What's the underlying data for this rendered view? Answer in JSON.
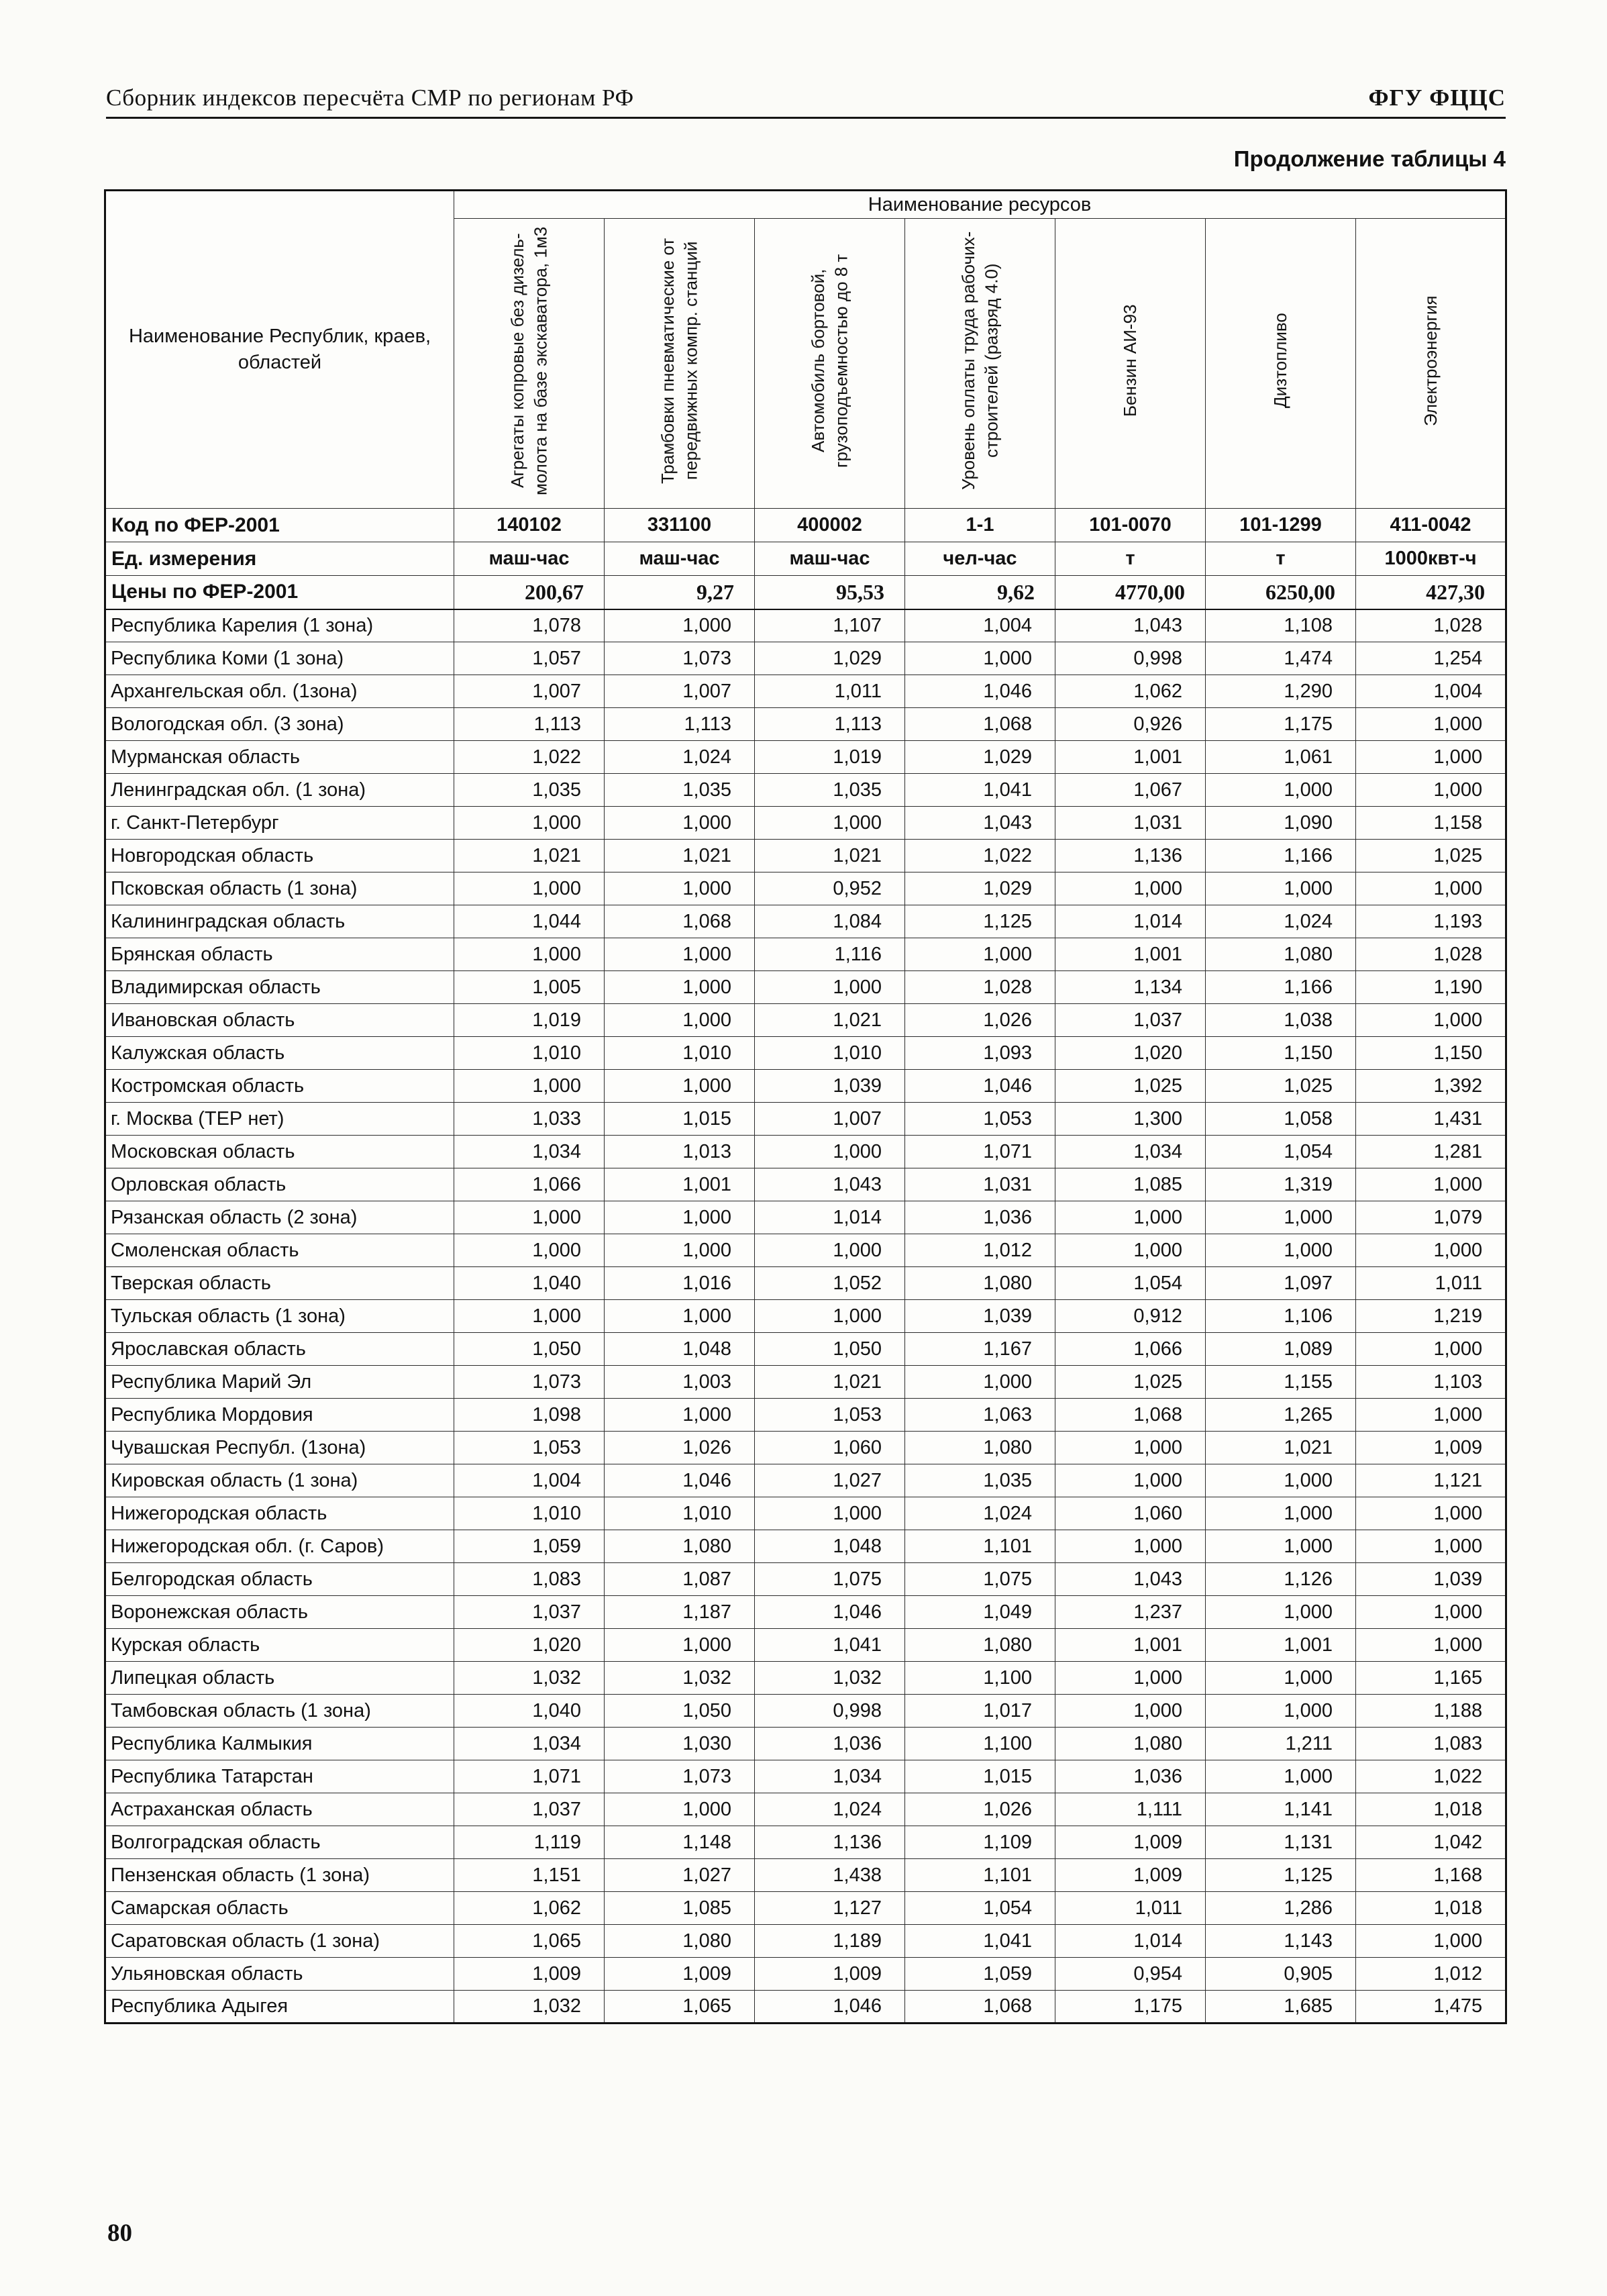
{
  "page": {
    "header_left": "Сборник индексов пересчёта СМР  по регионам РФ",
    "header_right": "ФГУ ФЦЦС",
    "table_caption": "Продолжение таблицы 4",
    "page_number": "80"
  },
  "table": {
    "corner_header": "Наименование Республик, краев, областей",
    "resources_header": "Наименование ресурсов",
    "columns": [
      "Агрегаты копровые без дизель-молота на базе экскаватора, 1м3",
      "Трамбовки пневматические от передвижных компр. станций",
      "Автомобиль бортовой, грузоподъемностью до 8 т",
      "Уровень оплаты труда рабочих-строителей (разряд 4.0)",
      "Бензин АИ-93",
      "Дизтопливо",
      "Электроэнергия"
    ],
    "meta_rows": [
      {
        "label": "Код по ФЕР-2001",
        "values": [
          "140102",
          "331100",
          "400002",
          "1-1",
          "101-0070",
          "101-1299",
          "411-0042"
        ]
      },
      {
        "label": "Ед. измерения",
        "values": [
          "маш-час",
          "маш-час",
          "маш-час",
          "чел-час",
          "т",
          "т",
          "1000квт-ч"
        ]
      },
      {
        "label": "Цены по ФЕР-2001",
        "values": [
          "200,67",
          "9,27",
          "95,53",
          "9,62",
          "4770,00",
          "6250,00",
          "427,30"
        ]
      }
    ],
    "rows": [
      {
        "name": "Республика Карелия (1 зона)",
        "values": [
          "1,078",
          "1,000",
          "1,107",
          "1,004",
          "1,043",
          "1,108",
          "1,028"
        ]
      },
      {
        "name": "Республика Коми (1 зона)",
        "values": [
          "1,057",
          "1,073",
          "1,029",
          "1,000",
          "0,998",
          "1,474",
          "1,254"
        ]
      },
      {
        "name": "Архангельская обл. (1зона)",
        "values": [
          "1,007",
          "1,007",
          "1,011",
          "1,046",
          "1,062",
          "1,290",
          "1,004"
        ]
      },
      {
        "name": "Вологодская обл. (3 зона)",
        "values": [
          "1,113",
          "1,113",
          "1,113",
          "1,068",
          "0,926",
          "1,175",
          "1,000"
        ]
      },
      {
        "name": "Мурманская область",
        "values": [
          "1,022",
          "1,024",
          "1,019",
          "1,029",
          "1,001",
          "1,061",
          "1,000"
        ]
      },
      {
        "name": "Ленинградская обл. (1 зона)",
        "values": [
          "1,035",
          "1,035",
          "1,035",
          "1,041",
          "1,067",
          "1,000",
          "1,000"
        ]
      },
      {
        "name": "г. Санкт-Петербург",
        "values": [
          "1,000",
          "1,000",
          "1,000",
          "1,043",
          "1,031",
          "1,090",
          "1,158"
        ]
      },
      {
        "name": "Новгородская область",
        "values": [
          "1,021",
          "1,021",
          "1,021",
          "1,022",
          "1,136",
          "1,166",
          "1,025"
        ]
      },
      {
        "name": "Псковская область (1 зона)",
        "values": [
          "1,000",
          "1,000",
          "0,952",
          "1,029",
          "1,000",
          "1,000",
          "1,000"
        ]
      },
      {
        "name": "Калининградская область",
        "values": [
          "1,044",
          "1,068",
          "1,084",
          "1,125",
          "1,014",
          "1,024",
          "1,193"
        ]
      },
      {
        "name": "Брянская область",
        "values": [
          "1,000",
          "1,000",
          "1,116",
          "1,000",
          "1,001",
          "1,080",
          "1,028"
        ]
      },
      {
        "name": "Владимирская область",
        "values": [
          "1,005",
          "1,000",
          "1,000",
          "1,028",
          "1,134",
          "1,166",
          "1,190"
        ]
      },
      {
        "name": "Ивановская область",
        "values": [
          "1,019",
          "1,000",
          "1,021",
          "1,026",
          "1,037",
          "1,038",
          "1,000"
        ]
      },
      {
        "name": "Калужская область",
        "values": [
          "1,010",
          "1,010",
          "1,010",
          "1,093",
          "1,020",
          "1,150",
          "1,150"
        ]
      },
      {
        "name": "Костромская область",
        "values": [
          "1,000",
          "1,000",
          "1,039",
          "1,046",
          "1,025",
          "1,025",
          "1,392"
        ]
      },
      {
        "name": "г. Москва (ТЕР нет)",
        "values": [
          "1,033",
          "1,015",
          "1,007",
          "1,053",
          "1,300",
          "1,058",
          "1,431"
        ]
      },
      {
        "name": "Московская  область",
        "values": [
          "1,034",
          "1,013",
          "1,000",
          "1,071",
          "1,034",
          "1,054",
          "1,281"
        ]
      },
      {
        "name": "Орловская область",
        "values": [
          "1,066",
          "1,001",
          "1,043",
          "1,031",
          "1,085",
          "1,319",
          "1,000"
        ]
      },
      {
        "name": "Рязанская область (2 зона)",
        "values": [
          "1,000",
          "1,000",
          "1,014",
          "1,036",
          "1,000",
          "1,000",
          "1,079"
        ]
      },
      {
        "name": "Смоленская область",
        "values": [
          "1,000",
          "1,000",
          "1,000",
          "1,012",
          "1,000",
          "1,000",
          "1,000"
        ]
      },
      {
        "name": "Тверская область",
        "values": [
          "1,040",
          "1,016",
          "1,052",
          "1,080",
          "1,054",
          "1,097",
          "1,011"
        ]
      },
      {
        "name": "Тульская область (1 зона)",
        "values": [
          "1,000",
          "1,000",
          "1,000",
          "1,039",
          "0,912",
          "1,106",
          "1,219"
        ]
      },
      {
        "name": "Ярославская область",
        "values": [
          "1,050",
          "1,048",
          "1,050",
          "1,167",
          "1,066",
          "1,089",
          "1,000"
        ]
      },
      {
        "name": "Республика Марий Эл",
        "values": [
          "1,073",
          "1,003",
          "1,021",
          "1,000",
          "1,025",
          "1,155",
          "1,103"
        ]
      },
      {
        "name": "Республика Мордовия",
        "values": [
          "1,098",
          "1,000",
          "1,053",
          "1,063",
          "1,068",
          "1,265",
          "1,000"
        ]
      },
      {
        "name": "Чувашская Республ. (1зона)",
        "values": [
          "1,053",
          "1,026",
          "1,060",
          "1,080",
          "1,000",
          "1,021",
          "1,009"
        ]
      },
      {
        "name": "Кировская область (1 зона)",
        "values": [
          "1,004",
          "1,046",
          "1,027",
          "1,035",
          "1,000",
          "1,000",
          "1,121"
        ]
      },
      {
        "name": "Нижегородская область",
        "values": [
          "1,010",
          "1,010",
          "1,000",
          "1,024",
          "1,060",
          "1,000",
          "1,000"
        ]
      },
      {
        "name": "Нижегородская обл. (г. Саров)",
        "values": [
          "1,059",
          "1,080",
          "1,048",
          "1,101",
          "1,000",
          "1,000",
          "1,000"
        ]
      },
      {
        "name": "Белгородская область",
        "values": [
          "1,083",
          "1,087",
          "1,075",
          "1,075",
          "1,043",
          "1,126",
          "1,039"
        ]
      },
      {
        "name": "Воронежская область",
        "values": [
          "1,037",
          "1,187",
          "1,046",
          "1,049",
          "1,237",
          "1,000",
          "1,000"
        ]
      },
      {
        "name": "Курская область",
        "values": [
          "1,020",
          "1,000",
          "1,041",
          "1,080",
          "1,001",
          "1,001",
          "1,000"
        ]
      },
      {
        "name": "Липецкая область",
        "values": [
          "1,032",
          "1,032",
          "1,032",
          "1,100",
          "1,000",
          "1,000",
          "1,165"
        ]
      },
      {
        "name": "Тамбовская область (1 зона)",
        "values": [
          "1,040",
          "1,050",
          "0,998",
          "1,017",
          "1,000",
          "1,000",
          "1,188"
        ]
      },
      {
        "name": "Республика Калмыкия",
        "values": [
          "1,034",
          "1,030",
          "1,036",
          "1,100",
          "1,080",
          "1,211",
          "1,083"
        ]
      },
      {
        "name": "Республика Татарстан",
        "values": [
          "1,071",
          "1,073",
          "1,034",
          "1,015",
          "1,036",
          "1,000",
          "1,022"
        ]
      },
      {
        "name": "Астраханская область",
        "values": [
          "1,037",
          "1,000",
          "1,024",
          "1,026",
          "1,111",
          "1,141",
          "1,018"
        ]
      },
      {
        "name": "Волгоградская область",
        "values": [
          "1,119",
          "1,148",
          "1,136",
          "1,109",
          "1,009",
          "1,131",
          "1,042"
        ]
      },
      {
        "name": "Пензенская область (1 зона)",
        "values": [
          "1,151",
          "1,027",
          "1,438",
          "1,101",
          "1,009",
          "1,125",
          "1,168"
        ]
      },
      {
        "name": "Самарская область",
        "values": [
          "1,062",
          "1,085",
          "1,127",
          "1,054",
          "1,011",
          "1,286",
          "1,018"
        ]
      },
      {
        "name": "Саратовская область (1 зона)",
        "values": [
          "1,065",
          "1,080",
          "1,189",
          "1,041",
          "1,014",
          "1,143",
          "1,000"
        ]
      },
      {
        "name": "Ульяновская область",
        "values": [
          "1,009",
          "1,009",
          "1,009",
          "1,059",
          "0,954",
          "0,905",
          "1,012"
        ]
      },
      {
        "name": "Республика Адыгея",
        "values": [
          "1,032",
          "1,065",
          "1,046",
          "1,068",
          "1,175",
          "1,685",
          "1,475"
        ]
      }
    ]
  }
}
